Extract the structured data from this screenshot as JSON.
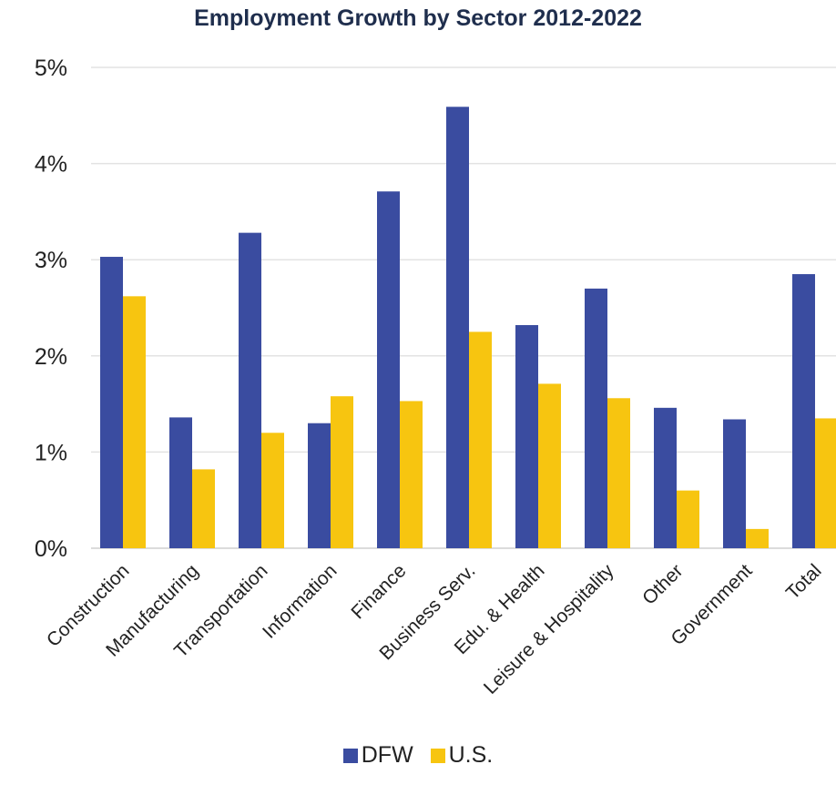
{
  "chart_data": {
    "type": "bar",
    "title": "Employment Growth by Sector 2012-2022",
    "xlabel": "",
    "ylabel": "",
    "categories": [
      "Construction",
      "Manufacturing",
      "Transportation",
      "Information",
      "Finance",
      "Business Serv.",
      "Edu. & Health",
      "Leisure & Hospitality",
      "Other",
      "Government",
      "Total"
    ],
    "series": [
      {
        "name": "DFW",
        "color": "#3a4ca0",
        "values": [
          3.03,
          1.36,
          3.28,
          1.3,
          3.71,
          4.59,
          2.32,
          2.7,
          1.46,
          1.34,
          2.85
        ]
      },
      {
        "name": "U.S.",
        "color": "#f7c510",
        "values": [
          2.62,
          0.82,
          1.2,
          1.58,
          1.53,
          2.25,
          1.71,
          1.56,
          0.6,
          0.2,
          1.35
        ]
      }
    ],
    "ylim": [
      0,
      5
    ],
    "yticks": [
      "0%",
      "1%",
      "2%",
      "3%",
      "4%",
      "5%"
    ],
    "grid": true,
    "legend_position": "bottom"
  }
}
